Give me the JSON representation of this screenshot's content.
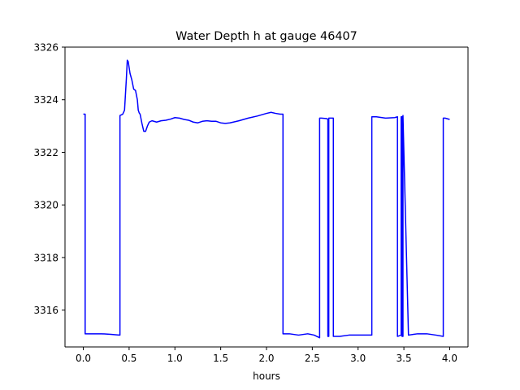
{
  "chart_data": {
    "type": "line",
    "title": "Water Depth h at gauge 46407",
    "xlabel": "hours",
    "ylabel": "",
    "xlim": [
      -0.2,
      4.2
    ],
    "ylim": [
      3314.6,
      3326
    ],
    "xticks": [
      0.0,
      0.5,
      1.0,
      1.5,
      2.0,
      2.5,
      3.0,
      3.5,
      4.0
    ],
    "xtick_labels": [
      "0.0",
      "0.5",
      "1.0",
      "1.5",
      "2.0",
      "2.5",
      "3.0",
      "3.5",
      "4.0"
    ],
    "yticks": [
      3316,
      3318,
      3320,
      3322,
      3324,
      3326
    ],
    "ytick_labels": [
      "3316",
      "3318",
      "3320",
      "3322",
      "3324",
      "3326"
    ],
    "grid": false,
    "series": [
      {
        "color": "#0000ff",
        "x": [
          0.0,
          0.02,
          0.02,
          0.1,
          0.2,
          0.3,
          0.39,
          0.4,
          0.4,
          0.43,
          0.45,
          0.47,
          0.48,
          0.49,
          0.51,
          0.53,
          0.55,
          0.57,
          0.59,
          0.6,
          0.61,
          0.62,
          0.64,
          0.66,
          0.68,
          0.7,
          0.72,
          0.75,
          0.8,
          0.85,
          0.9,
          0.95,
          1.0,
          1.05,
          1.1,
          1.15,
          1.2,
          1.25,
          1.3,
          1.35,
          1.4,
          1.45,
          1.5,
          1.55,
          1.6,
          1.7,
          1.8,
          1.9,
          2.0,
          2.05,
          2.1,
          2.15,
          2.17,
          2.18,
          2.18,
          2.25,
          2.35,
          2.45,
          2.52,
          2.58,
          2.58,
          2.6,
          2.66,
          2.67,
          2.67,
          2.68,
          2.68,
          2.72,
          2.73,
          2.73,
          2.8,
          2.9,
          3.0,
          3.1,
          3.15,
          3.15,
          3.2,
          3.3,
          3.4,
          3.43,
          3.43,
          3.47,
          3.47,
          3.48,
          3.48,
          3.49,
          3.49,
          3.55,
          3.65,
          3.75,
          3.85,
          3.93,
          3.93,
          3.95,
          4.0
        ],
        "y": [
          3323.45,
          3323.45,
          3315.1,
          3315.1,
          3315.1,
          3315.08,
          3315.05,
          3315.05,
          3323.4,
          3323.45,
          3323.6,
          3324.8,
          3325.5,
          3325.45,
          3325.0,
          3324.75,
          3324.4,
          3324.35,
          3324.0,
          3323.6,
          3323.5,
          3323.45,
          3323.1,
          3322.8,
          3322.8,
          3323.0,
          3323.15,
          3323.2,
          3323.15,
          3323.2,
          3323.22,
          3323.26,
          3323.32,
          3323.3,
          3323.25,
          3323.22,
          3323.15,
          3323.12,
          3323.18,
          3323.2,
          3323.18,
          3323.18,
          3323.12,
          3323.1,
          3323.12,
          3323.2,
          3323.3,
          3323.38,
          3323.48,
          3323.52,
          3323.48,
          3323.45,
          3323.45,
          3323.45,
          3315.1,
          3315.1,
          3315.05,
          3315.1,
          3315.05,
          3314.95,
          3323.3,
          3323.3,
          3323.28,
          3323.25,
          3315.0,
          3315.0,
          3323.3,
          3323.3,
          3323.3,
          3315.0,
          3315.0,
          3315.05,
          3315.05,
          3315.05,
          3315.05,
          3323.35,
          3323.35,
          3323.3,
          3323.32,
          3323.35,
          3315.0,
          3315.05,
          3323.35,
          3323.35,
          3315.0,
          3315.0,
          3323.4,
          3315.05,
          3315.1,
          3315.1,
          3315.05,
          3315.0,
          3323.3,
          3323.3,
          3323.25
        ]
      }
    ]
  }
}
